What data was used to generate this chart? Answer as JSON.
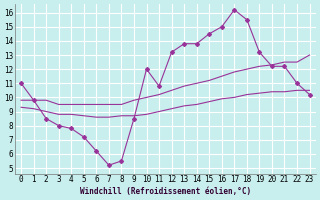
{
  "xlabel": "Windchill (Refroidissement éolien,°C)",
  "bg_color": "#c8efee",
  "grid_color": "#ffffff",
  "line_color": "#993399",
  "xticks": [
    0,
    1,
    2,
    3,
    4,
    5,
    6,
    7,
    8,
    9,
    10,
    11,
    12,
    13,
    14,
    15,
    16,
    17,
    18,
    19,
    20,
    21,
    22,
    23
  ],
  "yticks": [
    5,
    6,
    7,
    8,
    9,
    10,
    11,
    12,
    13,
    14,
    15,
    16
  ],
  "xlim_min": -0.5,
  "xlim_max": 23.5,
  "ylim_min": 4.6,
  "ylim_max": 16.6,
  "line1_x": [
    0,
    1,
    2,
    3,
    4,
    5,
    6,
    7,
    8,
    9,
    10,
    11,
    12,
    13,
    14,
    15,
    16,
    17,
    18,
    19,
    20,
    21,
    22,
    23
  ],
  "line1_y": [
    11.0,
    9.8,
    8.5,
    8.0,
    7.8,
    7.2,
    6.2,
    5.2,
    5.5,
    8.5,
    12.0,
    10.8,
    13.2,
    13.8,
    13.8,
    14.5,
    15.0,
    16.2,
    15.5,
    13.2,
    12.2,
    12.2,
    11.0,
    10.2
  ],
  "line2_x": [
    0,
    1,
    2,
    3,
    4,
    5,
    6,
    7,
    8,
    9,
    10,
    11,
    12,
    13,
    14,
    15,
    16,
    17,
    18,
    19,
    20,
    21,
    22,
    23
  ],
  "line2_y": [
    9.8,
    9.8,
    9.8,
    9.5,
    9.5,
    9.5,
    9.5,
    9.5,
    9.5,
    9.8,
    10.0,
    10.2,
    10.5,
    10.8,
    11.0,
    11.2,
    11.5,
    11.8,
    12.0,
    12.2,
    12.3,
    12.5,
    12.5,
    13.0
  ],
  "line3_x": [
    0,
    1,
    2,
    3,
    4,
    5,
    6,
    7,
    8,
    9,
    10,
    11,
    12,
    13,
    14,
    15,
    16,
    17,
    18,
    19,
    20,
    21,
    22,
    23
  ],
  "line3_y": [
    9.3,
    9.2,
    9.0,
    8.8,
    8.8,
    8.7,
    8.6,
    8.6,
    8.7,
    8.7,
    8.8,
    9.0,
    9.2,
    9.4,
    9.5,
    9.7,
    9.9,
    10.0,
    10.2,
    10.3,
    10.4,
    10.4,
    10.5,
    10.5
  ],
  "tick_fontsize": 5.5,
  "xlabel_fontsize": 5.5
}
